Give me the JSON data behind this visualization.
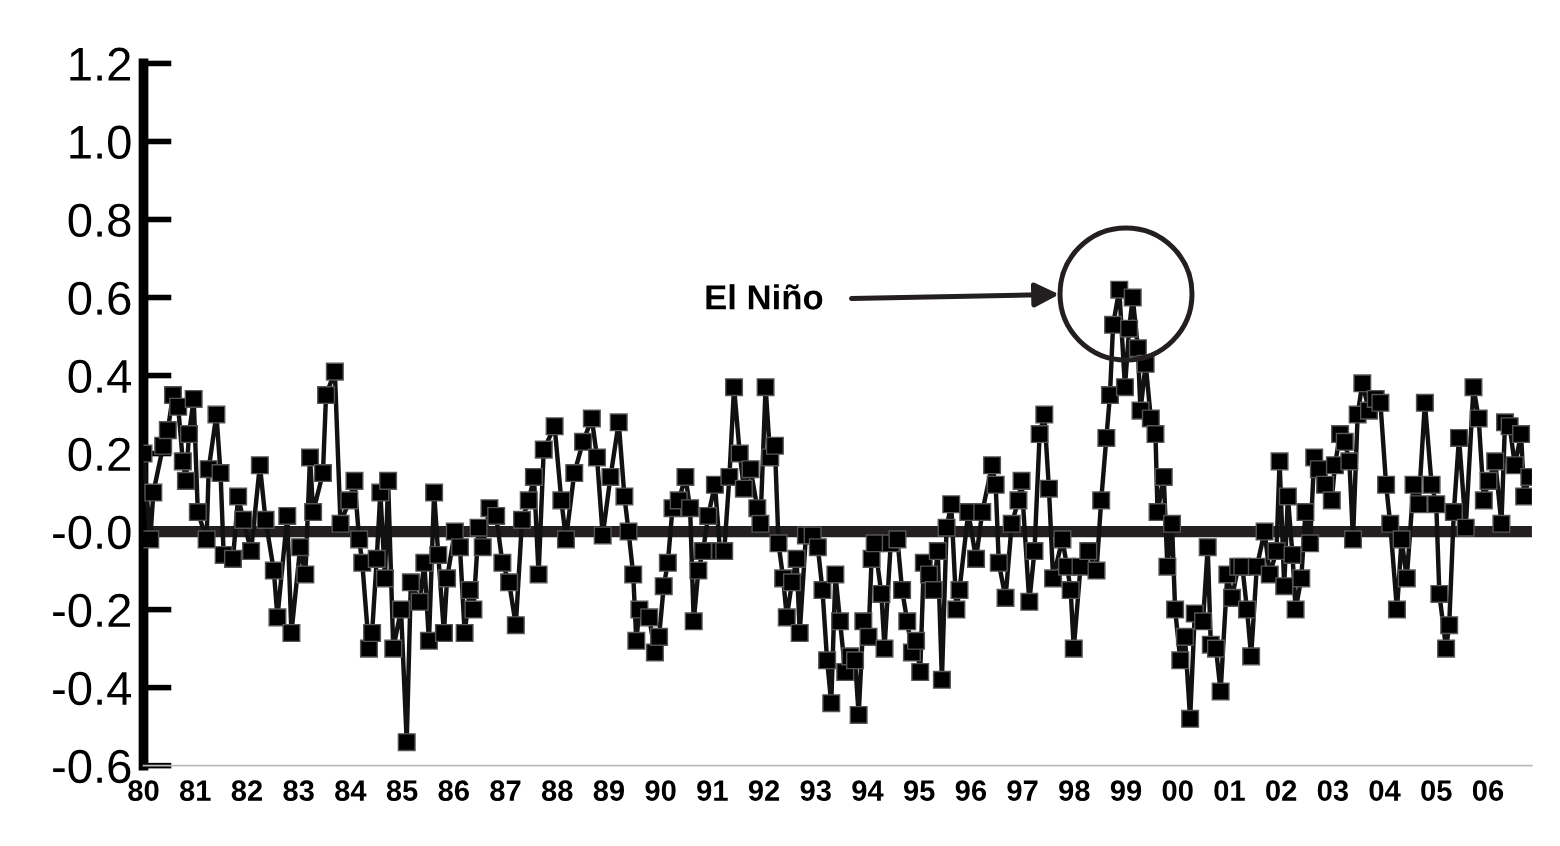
{
  "chart_data": {
    "type": "line",
    "x": [
      1980.0,
      1980.13,
      1980.19,
      1980.38,
      1980.47,
      1980.57,
      1980.67,
      1980.76,
      1980.82,
      1980.88,
      1980.97,
      1981.05,
      1981.22,
      1981.26,
      1981.41,
      1981.49,
      1981.55,
      1981.73,
      1981.83,
      1981.93,
      1982.08,
      1982.25,
      1982.36,
      1982.52,
      1982.59,
      1982.78,
      1982.86,
      1983.03,
      1983.13,
      1983.22,
      1983.28,
      1983.47,
      1983.53,
      1983.7,
      1983.81,
      1983.98,
      1984.08,
      1984.17,
      1984.23,
      1984.36,
      1984.42,
      1984.51,
      1984.58,
      1984.67,
      1984.73,
      1984.83,
      1984.98,
      1985.09,
      1985.17,
      1985.34,
      1985.43,
      1985.52,
      1985.62,
      1985.7,
      1985.81,
      1985.87,
      1986.02,
      1986.12,
      1986.21,
      1986.31,
      1986.38,
      1986.48,
      1986.56,
      1986.69,
      1986.82,
      1986.94,
      1987.07,
      1987.2,
      1987.32,
      1987.45,
      1987.55,
      1987.64,
      1987.74,
      1987.95,
      1988.08,
      1988.17,
      1988.33,
      1988.5,
      1988.67,
      1988.77,
      1988.88,
      1989.03,
      1989.19,
      1989.3,
      1989.38,
      1989.47,
      1989.53,
      1989.59,
      1989.78,
      1989.89,
      1989.97,
      1990.06,
      1990.14,
      1990.23,
      1990.35,
      1990.48,
      1990.57,
      1990.64,
      1990.73,
      1990.82,
      1990.92,
      1991.05,
      1991.15,
      1991.23,
      1991.33,
      1991.42,
      1991.53,
      1991.61,
      1991.74,
      1991.87,
      1991.93,
      1992.03,
      1992.12,
      1992.21,
      1992.28,
      1992.37,
      1992.44,
      1992.54,
      1992.63,
      1992.69,
      1992.81,
      1992.94,
      1993.04,
      1993.13,
      1993.22,
      1993.3,
      1993.38,
      1993.47,
      1993.57,
      1993.67,
      1993.76,
      1993.83,
      1993.92,
      1994.02,
      1994.08,
      1994.14,
      1994.27,
      1994.33,
      1994.45,
      1994.58,
      1994.67,
      1994.77,
      1994.86,
      1994.94,
      1995.02,
      1995.09,
      1995.19,
      1995.28,
      1995.36,
      1995.44,
      1995.53,
      1995.62,
      1995.72,
      1995.78,
      1995.95,
      1996.1,
      1996.22,
      1996.41,
      1996.48,
      1996.54,
      1996.67,
      1996.79,
      1996.92,
      1996.98,
      1997.13,
      1997.23,
      1997.33,
      1997.42,
      1997.51,
      1997.59,
      1997.77,
      1997.86,
      1997.93,
      1997.99,
      1998.12,
      1998.27,
      1998.43,
      1998.52,
      1998.62,
      1998.69,
      1998.75,
      1998.87,
      1998.98,
      1999.06,
      1999.13,
      1999.23,
      1999.28,
      1999.38,
      1999.48,
      1999.57,
      1999.61,
      1999.73,
      1999.8,
      1999.89,
      1999.95,
      2000.05,
      2000.14,
      2000.24,
      2000.33,
      2000.49,
      2000.58,
      2000.64,
      2000.74,
      2000.83,
      2000.96,
      2001.05,
      2001.17,
      2001.25,
      2001.34,
      2001.42,
      2001.53,
      2001.68,
      2001.78,
      2001.91,
      2001.97,
      2002.06,
      2002.13,
      2002.22,
      2002.28,
      2002.39,
      2002.47,
      2002.56,
      2002.64,
      2002.73,
      2002.85,
      2002.98,
      2003.04,
      2003.14,
      2003.23,
      2003.32,
      2003.39,
      2003.48,
      2003.57,
      2003.7,
      2003.83,
      2003.92,
      2004.03,
      2004.11,
      2004.24,
      2004.33,
      2004.43,
      2004.56,
      2004.66,
      2004.78,
      2004.91,
      2005.0,
      2005.06,
      2005.19,
      2005.25,
      2005.34,
      2005.44,
      2005.57,
      2005.72,
      2005.82,
      2005.92,
      2006.01,
      2006.14,
      2006.26,
      2006.33,
      2006.42,
      2006.52,
      2006.64,
      2006.7,
      2006.8
    ],
    "series": [
      {
        "color": "#111111",
        "values": [
          0.2,
          -0.02,
          0.1,
          0.22,
          0.26,
          0.35,
          0.32,
          0.18,
          0.13,
          0.25,
          0.34,
          0.05,
          -0.02,
          0.16,
          0.3,
          0.15,
          -0.06,
          -0.07,
          0.09,
          0.03,
          -0.05,
          0.17,
          0.03,
          -0.1,
          -0.22,
          0.04,
          -0.26,
          -0.04,
          -0.11,
          0.19,
          0.05,
          0.15,
          0.35,
          0.41,
          0.02,
          0.08,
          0.13,
          -0.02,
          -0.08,
          -0.3,
          -0.26,
          -0.07,
          0.1,
          -0.12,
          0.13,
          -0.3,
          -0.2,
          -0.54,
          -0.13,
          -0.18,
          -0.08,
          -0.28,
          0.1,
          -0.06,
          -0.26,
          -0.12,
          0.0,
          -0.04,
          -0.26,
          -0.15,
          -0.2,
          0.01,
          -0.04,
          0.06,
          0.04,
          -0.08,
          -0.13,
          -0.24,
          0.03,
          0.08,
          0.14,
          -0.11,
          0.21,
          0.27,
          0.08,
          -0.02,
          0.15,
          0.23,
          0.29,
          0.19,
          -0.01,
          0.14,
          0.28,
          0.09,
          0.0,
          -0.11,
          -0.28,
          -0.2,
          -0.22,
          -0.31,
          -0.27,
          -0.14,
          -0.08,
          0.06,
          0.08,
          0.14,
          0.06,
          -0.23,
          -0.1,
          -0.05,
          0.04,
          0.12,
          -0.05,
          -0.05,
          0.14,
          0.37,
          0.2,
          0.11,
          0.16,
          0.06,
          0.02,
          0.37,
          0.19,
          0.22,
          -0.03,
          -0.12,
          -0.22,
          -0.13,
          -0.07,
          -0.26,
          -0.01,
          -0.01,
          -0.04,
          -0.15,
          -0.33,
          -0.44,
          -0.11,
          -0.23,
          -0.36,
          -0.32,
          -0.33,
          -0.47,
          -0.23,
          -0.27,
          -0.07,
          -0.03,
          -0.16,
          -0.3,
          -0.03,
          -0.02,
          -0.15,
          -0.23,
          -0.31,
          -0.28,
          -0.36,
          -0.08,
          -0.11,
          -0.15,
          -0.05,
          -0.38,
          0.01,
          0.07,
          -0.2,
          -0.15,
          0.05,
          -0.07,
          0.05,
          0.17,
          0.12,
          -0.08,
          -0.17,
          0.02,
          0.08,
          0.13,
          -0.18,
          -0.05,
          0.25,
          0.3,
          0.11,
          -0.12,
          -0.02,
          -0.09,
          -0.15,
          -0.3,
          -0.09,
          -0.05,
          -0.1,
          0.08,
          0.24,
          0.35,
          0.53,
          0.62,
          0.37,
          0.52,
          0.6,
          0.47,
          0.31,
          0.43,
          0.29,
          0.25,
          0.05,
          0.14,
          -0.09,
          0.02,
          -0.2,
          -0.33,
          -0.27,
          -0.48,
          -0.21,
          -0.23,
          -0.04,
          -0.29,
          -0.3,
          -0.41,
          -0.11,
          -0.17,
          -0.09,
          -0.09,
          -0.2,
          -0.32,
          -0.09,
          0.0,
          -0.11,
          -0.05,
          0.18,
          -0.14,
          0.09,
          -0.06,
          -0.2,
          -0.12,
          0.05,
          -0.03,
          0.19,
          0.16,
          0.12,
          0.08,
          0.17,
          0.25,
          0.23,
          0.18,
          -0.02,
          0.3,
          0.38,
          0.31,
          0.34,
          0.33,
          0.12,
          0.02,
          -0.2,
          -0.02,
          -0.12,
          0.12,
          0.07,
          0.33,
          0.12,
          0.07,
          -0.16,
          -0.3,
          -0.24,
          0.05,
          0.24,
          0.01,
          0.37,
          0.29,
          0.08,
          0.13,
          0.18,
          0.02,
          0.28,
          0.27,
          0.17,
          0.25,
          0.09,
          0.14
        ]
      }
    ],
    "xlim": [
      1980.0,
      2006.85
    ],
    "xticks": [
      {
        "value": 1980,
        "label": "80"
      },
      {
        "value": 1981,
        "label": "81"
      },
      {
        "value": 1982,
        "label": "82"
      },
      {
        "value": 1983,
        "label": "83"
      },
      {
        "value": 1984,
        "label": "84"
      },
      {
        "value": 1985,
        "label": "85"
      },
      {
        "value": 1986,
        "label": "86"
      },
      {
        "value": 1987,
        "label": "87"
      },
      {
        "value": 1988,
        "label": "88"
      },
      {
        "value": 1989,
        "label": "89"
      },
      {
        "value": 1990,
        "label": "90"
      },
      {
        "value": 1991,
        "label": "91"
      },
      {
        "value": 1992,
        "label": "92"
      },
      {
        "value": 1993,
        "label": "93"
      },
      {
        "value": 1994,
        "label": "94"
      },
      {
        "value": 1995,
        "label": "95"
      },
      {
        "value": 1996,
        "label": "96"
      },
      {
        "value": 1997,
        "label": "97"
      },
      {
        "value": 1998,
        "label": "98"
      },
      {
        "value": 1999,
        "label": "99"
      },
      {
        "value": 2000,
        "label": "00"
      },
      {
        "value": 2001,
        "label": "01"
      },
      {
        "value": 2002,
        "label": "02"
      },
      {
        "value": 2003,
        "label": "03"
      },
      {
        "value": 2004,
        "label": "04"
      },
      {
        "value": 2005,
        "label": "05"
      },
      {
        "value": 2006,
        "label": "06"
      }
    ],
    "ylim": [
      -0.6,
      1.2
    ],
    "yticks": [
      {
        "value": -0.6,
        "label": "-0.6"
      },
      {
        "value": -0.4,
        "label": "-0.4"
      },
      {
        "value": -0.2,
        "label": "-0.2"
      },
      {
        "value": 0,
        "label": "-0.0"
      },
      {
        "value": 0.2,
        "label": "0.2"
      },
      {
        "value": 0.4,
        "label": "0.4"
      },
      {
        "value": 0.6,
        "label": "0.6"
      },
      {
        "value": 0.8,
        "label": "0.8"
      },
      {
        "value": 1.0,
        "label": "1.0"
      },
      {
        "value": 1.2,
        "label": "1.2"
      }
    ],
    "ref_lines": [
      {
        "axis": "y",
        "value": 0,
        "color": "#231f20"
      }
    ],
    "annotations": [
      "El Niño"
    ],
    "marker": "square",
    "line_style": "solid",
    "grid": false,
    "legend": false
  }
}
